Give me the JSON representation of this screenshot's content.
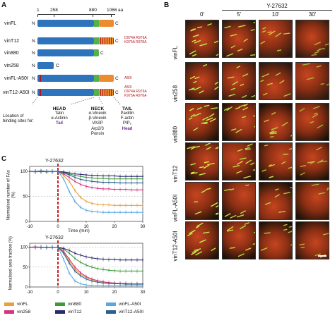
{
  "panelA": {
    "letter": "A",
    "ruler": {
      "t1": "1",
      "t258": "258",
      "t880": "880",
      "t1066": "1066",
      "unit": "aa"
    },
    "constructs": [
      {
        "name": "vinFL",
        "n": "N",
        "c": "C",
        "mutations": []
      },
      {
        "name": "vinT12",
        "n": "N",
        "c": "C",
        "mutations": [
          "D974A  R976A",
          "K975A  R978A"
        ]
      },
      {
        "name": "vin880",
        "n": "N",
        "c": "C",
        "mutations": []
      },
      {
        "name": "vin258",
        "n": "N",
        "c": "C",
        "mutations": []
      },
      {
        "name": "vinFL-A50I",
        "n": "N",
        "c": "C",
        "mutations": [
          "A50I"
        ]
      },
      {
        "name": "vinT12-A50I",
        "n": "N",
        "c": "C",
        "mutations": [
          "A50I",
          "D974A  R976A",
          "K975A  R978A"
        ]
      }
    ],
    "location_label": [
      "Location of",
      "binding sites for:"
    ],
    "head": {
      "title": "HEAD",
      "items": [
        "Talin",
        "α-Actinin"
      ],
      "highlight": "Tail"
    },
    "neck": {
      "title": "NECK",
      "items": [
        "α-Vinexin",
        "β-Vinexin",
        "VASP",
        "Arp2/3",
        "Ponsin"
      ]
    },
    "tail": {
      "title": "TAIL",
      "items": [
        "Paxillin",
        "F-actin",
        "PIP₂"
      ],
      "highlight": "Head"
    }
  },
  "panelB": {
    "letter": "B",
    "treatment": "Y-27632",
    "times": [
      "0'",
      "5'",
      "10'",
      "30'"
    ],
    "rows": [
      "vinFL",
      "vin258",
      "vin880",
      "vinT12",
      "vinFL-A50I",
      "vinT12-A50I"
    ]
  },
  "panelC": {
    "letter": "C",
    "colors": {
      "vinFL": "#e8a03a",
      "vin258": "#d6347f",
      "vin880": "#3f9a3c",
      "vinT12": "#2b2a6e",
      "vinFL-A50I": "#5aa7e0",
      "vinT12-A50I": "#2c5f8d"
    },
    "legend": [
      "vinFL",
      "vin880",
      "vinFL-A50I",
      "vin258",
      "vinT12",
      "vinT12-A50I"
    ],
    "chart_data": [
      {
        "type": "line",
        "title": "Y-27632",
        "xlabel": "Time (min)",
        "ylabel": "Normalised number of FAs (%)",
        "xlim": [
          -10,
          30
        ],
        "ylim": [
          0,
          110
        ],
        "x": [
          -10,
          -8,
          -6,
          -4,
          -2,
          0,
          2,
          4,
          6,
          8,
          10,
          12,
          14,
          16,
          18,
          20,
          22,
          24,
          26,
          28,
          30
        ],
        "series": [
          {
            "name": "vinFL",
            "values": [
              100,
              100,
              99,
              100,
              99,
              100,
              92,
              80,
              62,
              48,
              40,
              36,
              34,
              33,
              33,
              32,
              32,
              32,
              32,
              32,
              32
            ]
          },
          {
            "name": "vin258",
            "values": [
              100,
              99,
              100,
              99,
              100,
              100,
              95,
              88,
              80,
              74,
              70,
              68,
              66,
              65,
              65,
              64,
              64,
              64,
              63,
              63,
              63
            ]
          },
          {
            "name": "vin880",
            "values": [
              100,
              100,
              100,
              99,
              100,
              100,
              98,
              95,
              92,
              90,
              88,
              87,
              86,
              86,
              85,
              85,
              85,
              85,
              85,
              85,
              85
            ]
          },
          {
            "name": "vinT12",
            "values": [
              100,
              100,
              101,
              100,
              100,
              100,
              99,
              97,
              95,
              94,
              93,
              92,
              92,
              91,
              91,
              91,
              90,
              90,
              90,
              90,
              90
            ]
          },
          {
            "name": "vinFL-A50I",
            "values": [
              100,
              99,
              100,
              100,
              99,
              100,
              85,
              60,
              40,
              28,
              22,
              20,
              19,
              18,
              18,
              18,
              18,
              18,
              18,
              18,
              18
            ]
          },
          {
            "name": "vinT12-A50I",
            "values": [
              100,
              100,
              100,
              100,
              100,
              100,
              97,
              93,
              88,
              84,
              82,
              80,
              79,
              78,
              78,
              78,
              77,
              77,
              77,
              77,
              77
            ]
          }
        ]
      },
      {
        "type": "line",
        "title": "Y-27632",
        "xlabel": "Time (min)",
        "ylabel": "Normalised area fraction (%)",
        "xlim": [
          -10,
          30
        ],
        "ylim": [
          0,
          110
        ],
        "x": [
          -10,
          -8,
          -6,
          -4,
          -2,
          0,
          2,
          4,
          6,
          8,
          10,
          12,
          14,
          16,
          18,
          20,
          22,
          24,
          26,
          28,
          30
        ],
        "series": [
          {
            "name": "vinFL",
            "values": [
              100,
              100,
              99,
              100,
              100,
              100,
              88,
              65,
              45,
              32,
              24,
              18,
              14,
              12,
              10,
              9,
              8,
              8,
              8,
              8,
              8
            ]
          },
          {
            "name": "vin258",
            "values": [
              100,
              101,
              100,
              99,
              100,
              100,
              90,
              70,
              50,
              36,
              26,
              20,
              16,
              13,
              11,
              10,
              9,
              9,
              8,
              8,
              8
            ]
          },
          {
            "name": "vin880",
            "values": [
              100,
              100,
              100,
              100,
              100,
              100,
              95,
              85,
              72,
              62,
              55,
              50,
              46,
              44,
              42,
              41,
              40,
              40,
              40,
              40,
              40
            ]
          },
          {
            "name": "vinT12",
            "values": [
              100,
              100,
              100,
              100,
              100,
              100,
              97,
              92,
              85,
              80,
              76,
              73,
              71,
              70,
              69,
              69,
              68,
              68,
              68,
              68,
              68
            ]
          },
          {
            "name": "vinFL-A50I",
            "values": [
              100,
              100,
              100,
              100,
              100,
              100,
              70,
              35,
              15,
              8,
              5,
              4,
              4,
              3,
              3,
              3,
              3,
              3,
              3,
              3,
              3
            ]
          },
          {
            "name": "vinT12-A50I",
            "values": [
              100,
              100,
              100,
              100,
              100,
              100,
              85,
              60,
              40,
              28,
              20,
              15,
              12,
              10,
              9,
              8,
              8,
              7,
              7,
              7,
              7
            ]
          }
        ]
      }
    ],
    "ticks_x": [
      "-10",
      "0",
      "10",
      "20",
      "30"
    ],
    "ticks_y": [
      "0",
      "50",
      "100"
    ]
  }
}
